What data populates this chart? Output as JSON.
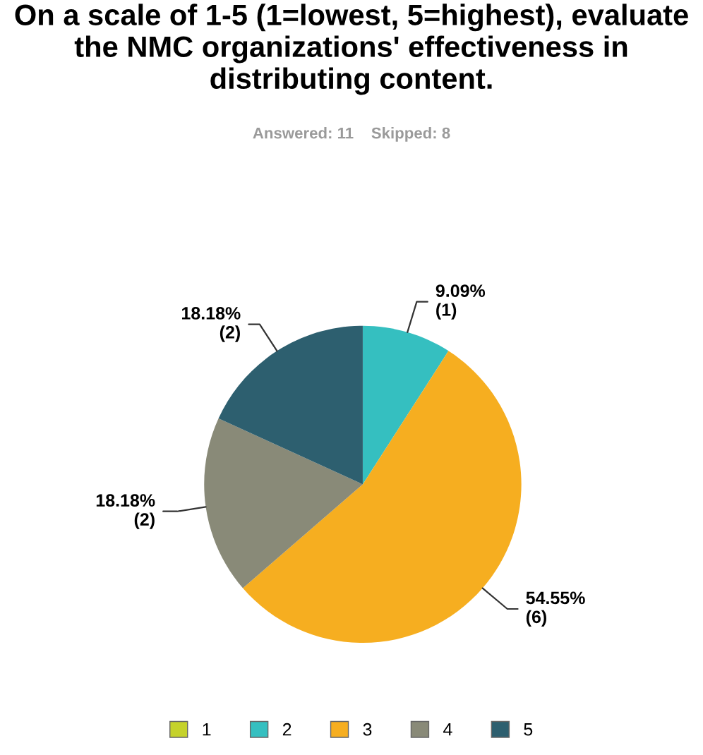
{
  "chart_data": {
    "type": "pie",
    "title": "On a scale of 1-5 (1=lowest, 5=highest), evaluate the NMC organizations' effectiveness in distributing content.",
    "subtitle": "Answered: 11    Skipped: 8",
    "categories": [
      "1",
      "2",
      "3",
      "4",
      "5"
    ],
    "values": [
      0,
      9.09,
      54.55,
      18.18,
      18.18
    ],
    "colors": [
      "#c5d22b",
      "#35bfc0",
      "#f6ae20",
      "#898a78",
      "#2d5f6f"
    ],
    "value_labels": [
      null,
      "9.09%\n(1)",
      "54.55%\n(6)",
      "18.18%\n(2)",
      "18.18%\n(2)"
    ],
    "legend": "bottom"
  }
}
